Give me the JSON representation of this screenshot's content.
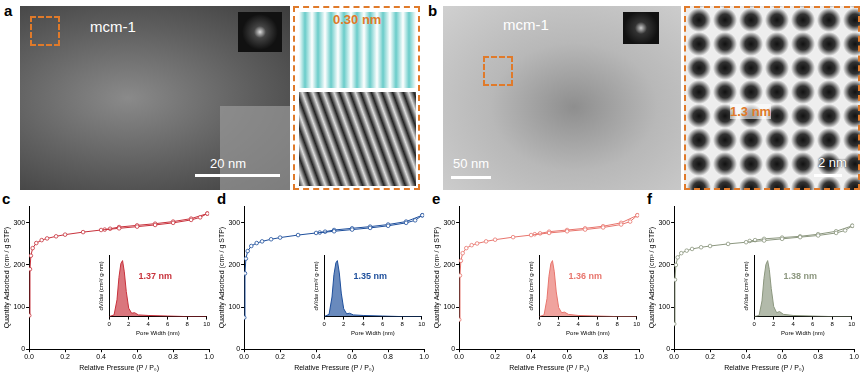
{
  "images": [
    {
      "label": "a",
      "sample": "mcm-1",
      "scale_bar": "20 nm",
      "inset_annotation": "0.30 nm"
    },
    {
      "label": "b",
      "sample": "mcm-1",
      "scale_bar": "50 nm",
      "zoom_annotation": "1.3 nm",
      "zoom_scale_bar": "2 nm"
    }
  ],
  "chart_data": [
    {
      "label": "c",
      "type": "line",
      "x_label": "Relative Pressure (P / P₀)",
      "y_label": "Quantity Adsorbed (cm³ / g STP)",
      "xlim": [
        0,
        1
      ],
      "xticks": [
        {
          "value": 0,
          "label": "0.0"
        },
        0.2,
        0.4,
        0.6,
        0.8,
        {
          "value": 1,
          "label": "1.0"
        }
      ],
      "ylim": [
        0,
        340
      ],
      "yticks": [
        0,
        100,
        200,
        300
      ],
      "grid": false,
      "series": [
        {
          "color": "#c8323c",
          "marker": "circle",
          "x": [
            0.001,
            0.005,
            0.01,
            0.02,
            0.04,
            0.07,
            0.1,
            0.15,
            0.2,
            0.3,
            0.4,
            0.5,
            0.6,
            0.7,
            0.8,
            0.9,
            0.95,
            0.99
          ],
          "values": [
            80,
            190,
            222,
            240,
            252,
            259,
            263,
            268,
            272,
            278,
            283,
            287,
            291,
            295,
            300,
            307,
            313,
            322
          ]
        },
        {
          "color": "#c8323c",
          "marker": "circle",
          "x": [
            0.99,
            0.9,
            0.8,
            0.7,
            0.6,
            0.5,
            0.45,
            0.42
          ],
          "values": [
            322,
            310,
            303,
            298,
            294,
            290,
            286,
            284
          ]
        }
      ],
      "inset": {
        "type": "area",
        "x_label": "Pore Width (nm)",
        "y_label": "dV/dw (cm³/ g·nm)",
        "color": "#c8323c",
        "annotation": "1.37 nm",
        "xlim": [
          0,
          10
        ],
        "xticks": [
          0,
          2,
          4,
          6,
          8,
          10
        ],
        "ylim": [
          0,
          1.1
        ],
        "tick_labels": "x",
        "x": [
          0,
          0.5,
          0.8,
          1.0,
          1.2,
          1.37,
          1.55,
          1.75,
          2.0,
          2.3,
          2.6,
          3,
          4,
          6,
          8,
          10
        ],
        "values": [
          0,
          0.03,
          0.3,
          0.7,
          0.95,
          1.0,
          0.8,
          0.45,
          0.15,
          0.06,
          0.07,
          0.03,
          0.02,
          0.01,
          0,
          0
        ]
      }
    },
    {
      "label": "d",
      "type": "line",
      "x_label": "Relative Pressure (P / P₀)",
      "y_label": "Quantity Adsorbed (cm³ / g STP)",
      "xlim": [
        0,
        1
      ],
      "xticks": [
        {
          "value": 0,
          "label": "0.0"
        },
        0.2,
        0.4,
        0.6,
        0.8,
        {
          "value": 1,
          "label": "1.0"
        }
      ],
      "ylim": [
        0,
        340
      ],
      "yticks": [
        0,
        100,
        200,
        300
      ],
      "grid": false,
      "series": [
        {
          "color": "#1e4f9c",
          "marker": "circle",
          "x": [
            0.001,
            0.005,
            0.01,
            0.02,
            0.04,
            0.07,
            0.1,
            0.15,
            0.2,
            0.3,
            0.4,
            0.5,
            0.6,
            0.7,
            0.8,
            0.9,
            0.95,
            0.99
          ],
          "values": [
            75,
            180,
            215,
            233,
            245,
            252,
            256,
            261,
            265,
            271,
            276,
            280,
            284,
            288,
            293,
            300,
            306,
            318
          ]
        },
        {
          "color": "#1e4f9c",
          "marker": "circle",
          "x": [
            0.99,
            0.9,
            0.8,
            0.7,
            0.6,
            0.5,
            0.45,
            0.42
          ],
          "values": [
            318,
            303,
            296,
            291,
            287,
            283,
            279,
            277
          ]
        }
      ],
      "inset": {
        "type": "area",
        "x_label": "Pore Width (nm)",
        "y_label": "dV/dw (cm³/ g·nm)",
        "color": "#1e4f9c",
        "annotation": "1.35 nm",
        "xlim": [
          0,
          10
        ],
        "xticks": [
          0,
          2,
          4,
          6,
          8,
          10
        ],
        "ylim": [
          0,
          1.1
        ],
        "tick_labels": "x",
        "x": [
          0,
          0.5,
          0.8,
          1.0,
          1.2,
          1.35,
          1.55,
          1.75,
          2.0,
          2.3,
          2.6,
          3,
          4,
          6,
          8,
          10
        ],
        "values": [
          0,
          0.04,
          0.35,
          0.75,
          0.96,
          1.0,
          0.78,
          0.42,
          0.14,
          0.05,
          0.06,
          0.03,
          0.02,
          0.01,
          0,
          0
        ]
      }
    },
    {
      "label": "e",
      "type": "line",
      "x_label": "Relative Pressure (P / P₀)",
      "y_label": "Quantity Adsorbed (cm³ / g STP)",
      "xlim": [
        0,
        1
      ],
      "xticks": [
        {
          "value": 0,
          "label": "0.0"
        },
        0.2,
        0.4,
        0.6,
        0.8,
        {
          "value": 1,
          "label": "1.0"
        }
      ],
      "ylim": [
        0,
        340
      ],
      "yticks": [
        0,
        100,
        200,
        300
      ],
      "grid": false,
      "series": [
        {
          "color": "#e8756d",
          "marker": "circle",
          "x": [
            0.001,
            0.005,
            0.01,
            0.02,
            0.04,
            0.07,
            0.1,
            0.15,
            0.2,
            0.3,
            0.4,
            0.5,
            0.6,
            0.7,
            0.8,
            0.9,
            0.95,
            0.99
          ],
          "values": [
            70,
            175,
            210,
            228,
            240,
            247,
            251,
            256,
            260,
            266,
            271,
            276,
            280,
            284,
            289,
            296,
            303,
            318
          ]
        },
        {
          "color": "#e8756d",
          "marker": "circle",
          "x": [
            0.99,
            0.9,
            0.8,
            0.7,
            0.6,
            0.5,
            0.45,
            0.42
          ],
          "values": [
            318,
            300,
            292,
            287,
            283,
            279,
            275,
            273
          ]
        }
      ],
      "inset": {
        "type": "area",
        "x_label": "Pore Width (nm)",
        "y_label": "dV/dw (cm³/ g·nm)",
        "color": "#e8756d",
        "annotation": "1.36 nm",
        "xlim": [
          0,
          10
        ],
        "xticks": [
          0,
          2,
          4,
          6,
          8,
          10
        ],
        "ylim": [
          0,
          1.1
        ],
        "tick_labels": "x",
        "x": [
          0,
          0.5,
          0.8,
          1.0,
          1.2,
          1.36,
          1.55,
          1.75,
          2.0,
          2.3,
          2.6,
          3,
          4,
          6,
          8,
          10
        ],
        "values": [
          0,
          0.03,
          0.32,
          0.72,
          0.95,
          1.0,
          0.8,
          0.44,
          0.16,
          0.07,
          0.08,
          0.04,
          0.02,
          0.01,
          0,
          0
        ]
      }
    },
    {
      "label": "f",
      "type": "line",
      "x_label": "Relative Pressure (P / P₀)",
      "y_label": "Quantity Adsorbed (cm³ / g STP)",
      "xlim": [
        0,
        1
      ],
      "xticks": [
        {
          "value": 0,
          "label": "0.0"
        },
        0.2,
        0.4,
        0.6,
        0.8,
        {
          "value": 1,
          "label": "1.0"
        }
      ],
      "ylim": [
        0,
        340
      ],
      "yticks": [
        0,
        100,
        200,
        300
      ],
      "grid": false,
      "series": [
        {
          "color": "#8c977f",
          "marker": "circle",
          "x": [
            0.001,
            0.005,
            0.01,
            0.02,
            0.04,
            0.07,
            0.1,
            0.15,
            0.2,
            0.3,
            0.4,
            0.5,
            0.6,
            0.7,
            0.8,
            0.9,
            0.95,
            0.99
          ],
          "values": [
            60,
            165,
            200,
            218,
            228,
            234,
            238,
            242,
            245,
            250,
            254,
            258,
            262,
            266,
            270,
            276,
            282,
            293
          ]
        },
        {
          "color": "#8c977f",
          "marker": "circle",
          "x": [
            0.99,
            0.9,
            0.8,
            0.7,
            0.6,
            0.5,
            0.45,
            0.42
          ],
          "values": [
            293,
            280,
            273,
            268,
            265,
            262,
            259,
            257
          ]
        }
      ],
      "inset": {
        "type": "area",
        "x_label": "Pore Width (nm)",
        "y_label": "dV/dw (cm³/ g·nm)",
        "color": "#8c977f",
        "annotation": "1.38 nm",
        "xlim": [
          0,
          10
        ],
        "xticks": [
          0,
          2,
          4,
          6,
          8,
          10
        ],
        "ylim": [
          0,
          1.1
        ],
        "tick_labels": "x",
        "x": [
          0,
          0.5,
          0.8,
          1.0,
          1.2,
          1.38,
          1.55,
          1.75,
          2.0,
          2.3,
          2.6,
          3,
          4,
          6,
          8,
          10
        ],
        "values": [
          0,
          0.02,
          0.28,
          0.68,
          0.93,
          1.0,
          0.84,
          0.5,
          0.18,
          0.07,
          0.09,
          0.04,
          0.02,
          0.01,
          0,
          0
        ]
      }
    }
  ]
}
